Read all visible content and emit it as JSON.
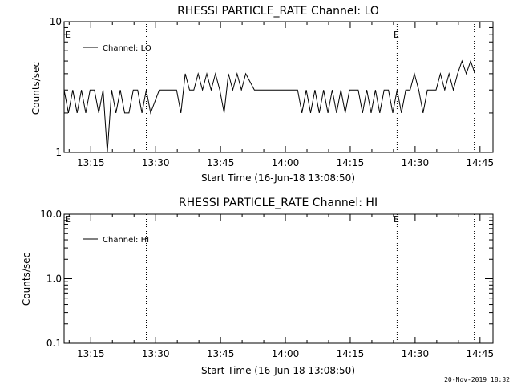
{
  "footer": {
    "timestamp": "20-Nov-2019 18:32"
  },
  "chart_data": [
    {
      "type": "line",
      "title": "RHESSI PARTICLE_RATE Channel: LO",
      "xlabel": "Start Time (16-Jun-18 13:08:50)",
      "ylabel": "Counts/sec",
      "yscale": "log",
      "ylim": [
        1,
        10
      ],
      "xlim": [
        "13:08:50",
        "14:48:00"
      ],
      "xtick_labels": [
        "13:15",
        "13:30",
        "13:45",
        "14:00",
        "14:15",
        "14:30",
        "14:45"
      ],
      "ytick_labels": [
        "1",
        "10"
      ],
      "event_lines": [
        "13:27:50",
        "14:25:50",
        "14:43:40"
      ],
      "event_markers": [
        "E",
        "E"
      ],
      "legend": {
        "placement": "top-left",
        "label": "Channel: LO"
      },
      "series": [
        {
          "name": "Channel: LO",
          "x": [
            "13:08:50",
            "13:09:50",
            "13:10:50",
            "13:11:50",
            "13:12:50",
            "13:13:50",
            "13:14:50",
            "13:15:50",
            "13:16:50",
            "13:17:50",
            "13:18:50",
            "13:19:50",
            "13:20:50",
            "13:21:50",
            "13:22:50",
            "13:23:50",
            "13:24:50",
            "13:25:50",
            "13:26:50",
            "13:27:50",
            "13:28:50",
            "13:30:50",
            "13:32:50",
            "13:34:50",
            "13:35:50",
            "13:36:50",
            "13:37:50",
            "13:38:50",
            "13:39:50",
            "13:40:50",
            "13:41:50",
            "13:42:50",
            "13:43:50",
            "13:44:50",
            "13:45:50",
            "13:46:50",
            "13:47:50",
            "13:48:50",
            "13:49:50",
            "13:50:50",
            "13:52:50",
            "13:54:50",
            "13:56:50",
            "13:58:50",
            "14:00:50",
            "14:01:50",
            "14:02:50",
            "14:03:50",
            "14:04:50",
            "14:05:50",
            "14:06:50",
            "14:07:50",
            "14:08:50",
            "14:09:50",
            "14:10:50",
            "14:11:50",
            "14:12:50",
            "14:13:50",
            "14:14:50",
            "14:15:50",
            "14:16:50",
            "14:17:50",
            "14:18:50",
            "14:19:50",
            "14:20:50",
            "14:21:50",
            "14:22:50",
            "14:23:50",
            "14:24:50",
            "14:25:50",
            "14:26:50",
            "14:27:50",
            "14:28:50",
            "14:29:50",
            "14:30:50",
            "14:31:50",
            "14:32:50",
            "14:33:50",
            "14:34:50",
            "14:35:50",
            "14:36:50",
            "14:37:50",
            "14:38:50",
            "14:39:50",
            "14:40:50",
            "14:41:50",
            "14:42:50",
            "14:43:50"
          ],
          "values": [
            3,
            2,
            3,
            2,
            3,
            2,
            3,
            3,
            2,
            3,
            1,
            3,
            2,
            3,
            2,
            2,
            3,
            3,
            2,
            3,
            2,
            3,
            3,
            3,
            2,
            4,
            3,
            3,
            4,
            3,
            4,
            3,
            4,
            3,
            2,
            4,
            3,
            4,
            3,
            4,
            3,
            3,
            3,
            3,
            3,
            3,
            3,
            2,
            3,
            2,
            3,
            2,
            3,
            2,
            3,
            2,
            3,
            2,
            3,
            3,
            3,
            2,
            3,
            2,
            3,
            2,
            3,
            3,
            2,
            3,
            2,
            3,
            3,
            4,
            3,
            2,
            3,
            3,
            3,
            4,
            3,
            4,
            3,
            4,
            5,
            4,
            5,
            4
          ]
        }
      ]
    },
    {
      "type": "line",
      "title": "RHESSI PARTICLE_RATE Channel: HI",
      "xlabel": "Start Time (16-Jun-18 13:08:50)",
      "ylabel": "Counts/sec",
      "yscale": "log",
      "ylim": [
        0.1,
        10
      ],
      "xlim": [
        "13:08:50",
        "14:48:00"
      ],
      "xtick_labels": [
        "13:15",
        "13:30",
        "13:45",
        "14:00",
        "14:15",
        "14:30",
        "14:45"
      ],
      "ytick_labels": [
        "0.1",
        "1.0",
        "10.0"
      ],
      "event_lines": [
        "13:27:50",
        "14:25:50",
        "14:43:40"
      ],
      "event_markers": [
        "E",
        "E"
      ],
      "legend": {
        "placement": "top-left",
        "label": "Channel: HI"
      },
      "series": [
        {
          "name": "Channel: HI",
          "x": [],
          "values": []
        }
      ]
    }
  ]
}
